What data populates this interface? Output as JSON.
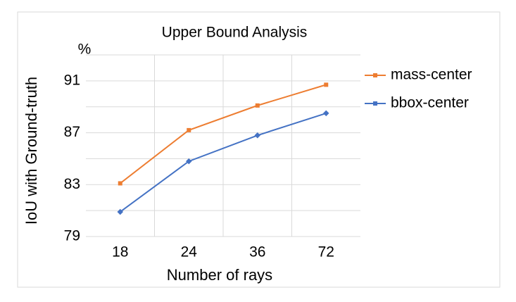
{
  "chart_data": {
    "type": "line",
    "title": "Upper Bound Analysis",
    "y_unit": "%",
    "x_label": "Number of rays",
    "y_label": "IoU with Ground-truth",
    "categories": [
      "18",
      "24",
      "36",
      "72"
    ],
    "series": [
      {
        "name": "mass-center",
        "color": "#ed7d31",
        "values": [
          83.1,
          87.2,
          89.1,
          90.7
        ]
      },
      {
        "name": "bbox-center",
        "color": "#4472c4",
        "values": [
          80.9,
          84.8,
          86.8,
          88.5
        ]
      }
    ],
    "ylim": [
      79,
      93
    ],
    "yticks": [
      79,
      83,
      87,
      91
    ],
    "minor_gridlines": [
      81,
      85,
      89,
      93
    ],
    "grid": true,
    "legend": "right"
  }
}
